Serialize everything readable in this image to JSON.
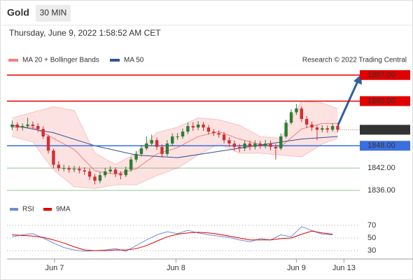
{
  "header": {
    "symbol": "Gold",
    "interval": "30 MIN",
    "timestamp": "Thursday, June 9, 2022 1:58:52 AM CET"
  },
  "chart_data": [
    {
      "type": "candlestick",
      "source": "Research © 2022 Trading Central",
      "open": [
        1853.0,
        1853.7,
        1852.9,
        1853.3,
        1853.7,
        1853.3,
        1852.5,
        1850.5,
        1846.7,
        1842.9,
        1842.0,
        1842.0,
        1841.6,
        1841.8,
        1841.4,
        1841.1,
        1839.7,
        1838.6,
        1840.1,
        1841.1,
        1841.6,
        1840.5,
        1840.1,
        1841.6,
        1844.3,
        1845.8,
        1847.3,
        1848.6,
        1849.5,
        1847.7,
        1845.8,
        1848.6,
        1850.5,
        1850.5,
        1851.8,
        1853.3,
        1852.9,
        1853.7,
        1852.9,
        1851.8,
        1851.4,
        1851.0,
        1849.5,
        1848.6,
        1847.7,
        1847.3,
        1848.6,
        1847.7,
        1848.6,
        1848.0,
        1848.6,
        1847.7,
        1847.3,
        1850.5,
        1854.2,
        1857.0,
        1858.0,
        1855.2,
        1853.7,
        1852.9,
        1852.3,
        1852.7,
        1852.3,
        1853.3
      ],
      "high": [
        1854.8,
        1854.3,
        1854.0,
        1855.5,
        1854.5,
        1854.0,
        1853.2,
        1851.0,
        1847.2,
        1843.8,
        1842.9,
        1842.7,
        1842.6,
        1842.5,
        1842.2,
        1841.8,
        1840.4,
        1840.9,
        1842.0,
        1842.5,
        1842.2,
        1841.2,
        1842.4,
        1845.0,
        1846.6,
        1848.2,
        1850.5,
        1851.0,
        1850.2,
        1848.4,
        1849.5,
        1851.3,
        1851.4,
        1852.6,
        1854.2,
        1854.3,
        1854.6,
        1854.4,
        1853.6,
        1852.5,
        1852.1,
        1851.7,
        1850.3,
        1849.4,
        1848.5,
        1849.4,
        1849.4,
        1849.5,
        1849.3,
        1849.6,
        1849.4,
        1848.5,
        1851.3,
        1855.0,
        1857.8,
        1859.2,
        1858.6,
        1856.0,
        1854.5,
        1853.6,
        1853.5,
        1853.4,
        1854.0,
        1854.0
      ],
      "low": [
        1852.2,
        1852.0,
        1852.1,
        1852.8,
        1852.4,
        1851.6,
        1849.8,
        1845.9,
        1842.0,
        1841.2,
        1841.1,
        1840.8,
        1840.9,
        1840.6,
        1840.2,
        1838.8,
        1837.6,
        1837.9,
        1839.5,
        1840.6,
        1839.6,
        1839.0,
        1839.6,
        1841.0,
        1843.6,
        1845.1,
        1846.8,
        1847.9,
        1846.9,
        1844.8,
        1845.2,
        1848.0,
        1849.6,
        1849.9,
        1851.1,
        1852.0,
        1852.2,
        1852.0,
        1851.0,
        1850.6,
        1850.2,
        1848.6,
        1847.7,
        1846.6,
        1846.3,
        1846.6,
        1846.8,
        1847.0,
        1847.2,
        1847.3,
        1846.8,
        1844.3,
        1846.8,
        1850.0,
        1853.7,
        1856.3,
        1854.4,
        1852.8,
        1852.0,
        1849.5,
        1851.6,
        1851.5,
        1851.8,
        1851.6
      ],
      "close": [
        1853.7,
        1852.9,
        1853.3,
        1853.7,
        1853.3,
        1852.5,
        1850.5,
        1846.7,
        1842.9,
        1842.0,
        1842.0,
        1841.6,
        1841.8,
        1841.4,
        1841.1,
        1839.7,
        1838.6,
        1840.1,
        1841.1,
        1841.6,
        1840.5,
        1840.1,
        1841.6,
        1844.3,
        1845.8,
        1847.3,
        1848.6,
        1849.5,
        1847.7,
        1845.8,
        1848.6,
        1850.5,
        1850.5,
        1851.8,
        1853.3,
        1852.9,
        1853.7,
        1852.9,
        1851.8,
        1851.4,
        1851.0,
        1849.5,
        1848.6,
        1847.7,
        1847.3,
        1848.6,
        1847.7,
        1848.6,
        1848.0,
        1848.6,
        1847.7,
        1847.3,
        1850.5,
        1854.2,
        1857.0,
        1858.0,
        1855.2,
        1853.7,
        1852.9,
        1852.3,
        1852.7,
        1852.3,
        1853.3,
        1852.3
      ],
      "up_color": "#2e7d32",
      "down_color": "#d32f2f",
      "bands": {
        "name": "MA 20 + Bollinger Bands",
        "color": "#f08080",
        "fill": "#fde2e2",
        "x": [
          0,
          4,
          8,
          12,
          16,
          20,
          24,
          28,
          32,
          36,
          40,
          44,
          48,
          52,
          56,
          60,
          63
        ],
        "upper": [
          1855.5,
          1857.0,
          1858.5,
          1857.5,
          1846.0,
          1843.0,
          1846.0,
          1851.5,
          1853.0,
          1855.5,
          1855.0,
          1853.5,
          1850.5,
          1850.0,
          1860.0,
          1859.5,
          1858.0
        ],
        "middle": [
          1853.0,
          1853.0,
          1850.0,
          1847.0,
          1841.3,
          1840.3,
          1841.8,
          1845.8,
          1847.5,
          1850.5,
          1851.8,
          1849.8,
          1848.3,
          1847.8,
          1852.5,
          1854.0,
          1854.0
        ],
        "lower": [
          1850.5,
          1849.0,
          1841.5,
          1837.0,
          1836.5,
          1837.5,
          1837.5,
          1840.0,
          1842.0,
          1845.5,
          1848.5,
          1846.0,
          1846.0,
          1845.5,
          1845.0,
          1848.5,
          1850.0
        ]
      },
      "series": [
        {
          "name": "MA 50",
          "color": "#2f5597",
          "x": [
            0,
            8,
            16,
            24,
            32,
            40,
            48,
            56,
            63
          ],
          "values": [
            1853.5,
            1851.5,
            1848.0,
            1845.5,
            1844.8,
            1846.5,
            1848.2,
            1849.8,
            1850.5
          ]
        }
      ],
      "levels": [
        {
          "value": 1867,
          "label": "1867.00",
          "color": "#e00000",
          "label_style": "box"
        },
        {
          "value": 1860,
          "label": "1860.00",
          "color": "#e00000",
          "label_style": "box"
        },
        {
          "value": 1848,
          "label": "1848.00",
          "color": "#3b6fe0",
          "label_style": "box"
        },
        {
          "value": 1842,
          "label": "1842.00",
          "color": "#2e8b2e",
          "label_style": "text"
        },
        {
          "value": 1836,
          "label": "1836.00",
          "color": "#2e8b2e",
          "label_style": "text"
        }
      ],
      "last_price": {
        "value": 1852.3,
        "label": "1852.30",
        "color": "#333333"
      },
      "xlim": [
        -1,
        67
      ],
      "ylim": [
        1834.5,
        1869.3
      ],
      "xticks": [
        {
          "value": 8.2,
          "label": "Jun 7"
        },
        {
          "value": 31.7,
          "label": "Jun 8"
        },
        {
          "value": 55,
          "label": "Jun 9"
        },
        {
          "value": 64.2,
          "label": "Jun 13"
        }
      ]
    },
    {
      "type": "line",
      "series": [
        {
          "name": "RSI",
          "color": "#6b8ed6",
          "x": [
            0,
            2,
            4,
            6,
            8,
            10,
            12,
            14,
            16,
            18,
            20,
            22,
            24,
            26,
            28,
            30,
            32,
            34,
            36,
            38,
            40,
            42,
            44,
            46,
            48,
            50,
            52,
            54,
            56,
            58,
            60,
            62
          ],
          "values": [
            52,
            55,
            57,
            50,
            42,
            35,
            31,
            29,
            30,
            31,
            33,
            29,
            38,
            47,
            55,
            60,
            57,
            62,
            58,
            55,
            53,
            51,
            47,
            44,
            49,
            47,
            55,
            52,
            68,
            62,
            56,
            55
          ]
        },
        {
          "name": "9MA",
          "color": "#e00000",
          "x": [
            0,
            2,
            4,
            6,
            8,
            10,
            12,
            14,
            16,
            18,
            20,
            22,
            24,
            26,
            28,
            30,
            32,
            34,
            36,
            38,
            40,
            42,
            44,
            46,
            48,
            50,
            52,
            54,
            56,
            58,
            60,
            62
          ],
          "values": [
            55,
            54,
            53,
            51,
            47,
            42,
            36,
            31,
            30,
            30,
            31,
            31,
            33,
            38,
            45,
            52,
            56,
            58,
            59,
            58,
            56,
            53,
            50,
            47,
            47,
            47,
            49,
            50,
            56,
            61,
            58,
            56
          ]
        }
      ],
      "xlim": [
        -1,
        67
      ],
      "ylim": [
        16.7,
        83.3
      ],
      "yticks": [
        30,
        50,
        70
      ]
    }
  ]
}
